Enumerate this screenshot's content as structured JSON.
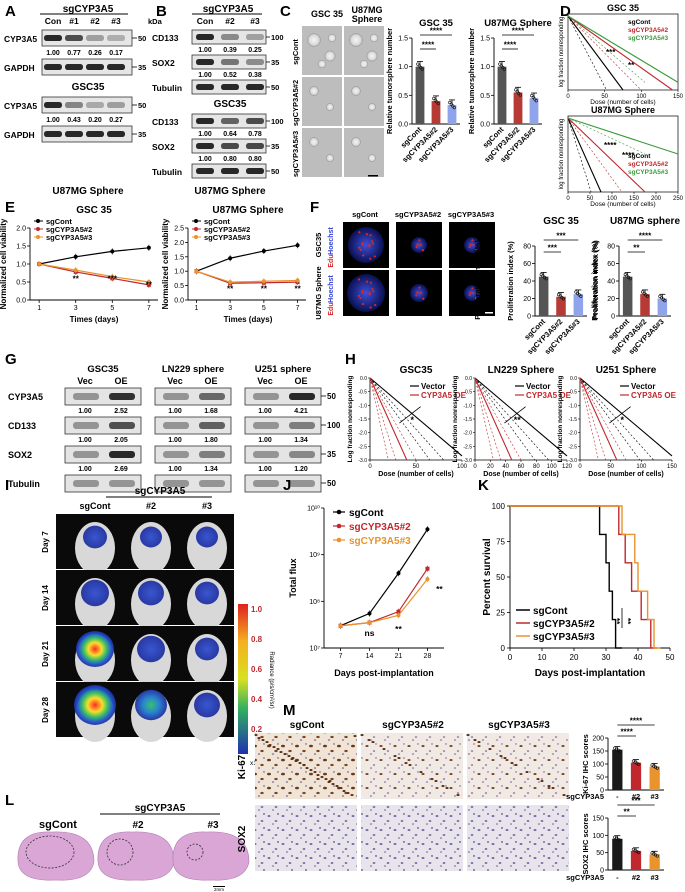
{
  "panel_labels": [
    "A",
    "B",
    "C",
    "D",
    "E",
    "F",
    "G",
    "H",
    "I",
    "J",
    "K",
    "L",
    "M"
  ],
  "colors": {
    "sgcont": "#000000",
    "sg2": "#c0282d",
    "sg3": "#e8932b",
    "sg3_green": "#3b9a3b",
    "sphere_blue": "#2130c4",
    "edu_red": "#d42a2a",
    "vector": "#000000",
    "oe": "#c0282d",
    "bar_cont": "#555555",
    "bar_sg2": "#b73b35",
    "bar_sg3": "#8fa4ea"
  },
  "panel_A": {
    "group": "sgCYP3A5",
    "lanes": [
      "Con",
      "#1",
      "#2",
      "#3"
    ],
    "kda": "kDa",
    "gsc35": {
      "cell": "GSC35",
      "rows": [
        {
          "label": "CYP3A5",
          "marker": "50",
          "values": [
            "1.00",
            "0.77",
            "0.26",
            "0.17"
          ]
        },
        {
          "label": "GAPDH",
          "marker": "35",
          "values": []
        }
      ]
    },
    "u87": {
      "cell": "U87MG Sphere",
      "rows": [
        {
          "label": "CYP3A5",
          "marker": "50",
          "values": [
            "1.00",
            "0.43",
            "0.20",
            "0.27"
          ]
        },
        {
          "label": "GAPDH",
          "marker": "35",
          "values": []
        }
      ]
    }
  },
  "panel_B": {
    "group": "sgCYP3A5",
    "lanes": [
      "Con",
      "#2",
      "#3"
    ],
    "gsc35": {
      "cell": "GSC35",
      "rows": [
        {
          "label": "CD133",
          "marker": "100",
          "values": [
            "1.00",
            "0.39",
            "0.25"
          ]
        },
        {
          "label": "SOX2",
          "marker": "35",
          "values": [
            "1.00",
            "0.52",
            "0.38"
          ]
        },
        {
          "label": "Tubulin",
          "marker": "50",
          "values": []
        }
      ]
    },
    "u87": {
      "cell": "U87MG Sphere",
      "rows": [
        {
          "label": "CD133",
          "marker": "100",
          "values": [
            "1.00",
            "0.64",
            "0.78"
          ]
        },
        {
          "label": "SOX2",
          "marker": "35",
          "values": [
            "1.00",
            "0.80",
            "0.80"
          ]
        },
        {
          "label": "Tubulin",
          "marker": "50",
          "values": []
        }
      ]
    }
  },
  "panel_C": {
    "col_titles": [
      "GSC 35",
      "U87MG Sphere"
    ],
    "row_labels": [
      "sgCont",
      "sgCYP3A5#2",
      "sgCYP3A5#3"
    ],
    "chart_gsc": {
      "title": "GSC 35",
      "ylabel": "Relative tumorsphere number",
      "ylim": [
        0,
        1.5
      ],
      "yticks": [
        "0.0",
        "0.5",
        "1.0",
        "1.5"
      ],
      "categories": [
        "sgCont",
        "sgCYP3A5#2",
        "sgCYP3A5#3"
      ],
      "values": [
        1.0,
        0.4,
        0.33
      ],
      "sig": [
        "****",
        "****"
      ]
    },
    "chart_u87": {
      "title": "U87MG Sphere",
      "ylabel": "Relative tumorsphere number",
      "ylim": [
        0,
        1.5
      ],
      "yticks": [
        "0.0",
        "0.5",
        "1.0",
        "1.5"
      ],
      "categories": [
        "sgCont",
        "sgCYP3A5#2",
        "sgCYP3A5#3"
      ],
      "values": [
        1.0,
        0.55,
        0.45
      ],
      "sig": [
        "****",
        "****"
      ]
    }
  },
  "panel_D": {
    "plots": [
      {
        "title": "GSC 35",
        "ylabel": "log fraction nonresponding",
        "xlabel": "Dose (number of cells)",
        "xticks": [
          "0",
          "50",
          "100",
          "150"
        ],
        "legend": [
          "sgCont",
          "sgCYP3A5#2",
          "sgCYP3A5#3"
        ],
        "sig": [
          "***",
          "**"
        ]
      },
      {
        "title": "U87MG Sphere",
        "ylabel": "log fraction nonresponding",
        "xlabel": "Dose (number of cells)",
        "xticks": [
          "0",
          "50",
          "100",
          "150",
          "200",
          "250"
        ],
        "legend": [
          "sgCont",
          "sgCYP3A5#2",
          "sgCYP3A5#3"
        ],
        "sig": [
          "****",
          "****"
        ]
      }
    ]
  },
  "panel_E": {
    "ylabel": "Normalized cell viability",
    "xlabel": "Times (days)",
    "chart_gsc": {
      "title": "GSC 35",
      "x": [
        1,
        3,
        5,
        7
      ],
      "ylim": [
        0,
        2.0
      ],
      "yticks": [
        "0.0",
        "0.5",
        "1.0",
        "1.5",
        "2.0"
      ],
      "series": [
        {
          "name": "sgCont",
          "values": [
            1.0,
            1.2,
            1.35,
            1.45
          ]
        },
        {
          "name": "sgCYP3A5#2",
          "values": [
            1.0,
            0.78,
            0.6,
            0.42
          ]
        },
        {
          "name": "sgCYP3A5#3",
          "values": [
            1.0,
            0.83,
            0.65,
            0.5
          ]
        }
      ],
      "sig": [
        "**",
        "***",
        "**"
      ]
    },
    "chart_u87": {
      "title": "U87MG Sphere",
      "x": [
        1,
        3,
        5,
        7
      ],
      "ylim": [
        0,
        2.5
      ],
      "yticks": [
        "0.0",
        "0.5",
        "1.0",
        "1.5",
        "2.0",
        "2.5"
      ],
      "series": [
        {
          "name": "sgCont",
          "values": [
            1.0,
            1.45,
            1.7,
            1.9
          ]
        },
        {
          "name": "sgCYP3A5#2",
          "values": [
            1.0,
            0.58,
            0.6,
            0.62
          ]
        },
        {
          "name": "sgCYP3A5#3",
          "values": [
            1.0,
            0.62,
            0.65,
            0.68
          ]
        }
      ],
      "sig": [
        "**",
        "**",
        "**"
      ]
    }
  },
  "panel_F": {
    "col_titles": [
      "sgCont",
      "sgCYP3A5#2",
      "sgCYP3A5#3"
    ],
    "row_cells": [
      "GSC35",
      "U87MG Sphere"
    ],
    "stain_hoechst": "Hoechst",
    "stain_edu": "Edu",
    "chart_gsc": {
      "title": "GSC 35",
      "ylabel": "Proliferation index (%)",
      "ylim": [
        0,
        80
      ],
      "yticks": [
        "0",
        "20",
        "40",
        "60",
        "80"
      ],
      "categories": [
        "sgCont",
        "sgCYP3A5#2",
        "sgCYP3A5#3"
      ],
      "values": [
        45,
        22,
        25
      ],
      "sig": [
        "***",
        "***"
      ]
    },
    "chart_u87": {
      "title": "U87MG sphere",
      "ylabel": "Proliferation index (%)",
      "ylim": [
        0,
        80
      ],
      "yticks": [
        "0",
        "20",
        "40",
        "60",
        "80"
      ],
      "categories": [
        "sgCont",
        "sgCYP3A5#2",
        "sgCYP3A5#3"
      ],
      "values": [
        45,
        25,
        20
      ],
      "sig": [
        "****",
        "**"
      ]
    }
  },
  "panel_G": {
    "cells": [
      "GSC35",
      "LN229 sphere",
      "U251 sphere"
    ],
    "lanes": [
      "Vec",
      "OE"
    ],
    "rows": [
      {
        "label": "CYP3A5",
        "marker": "50",
        "values": [
          [
            "1.00",
            "2.52"
          ],
          [
            "1.00",
            "1.68"
          ],
          [
            "1.00",
            "4.21"
          ]
        ]
      },
      {
        "label": "CD133",
        "marker": "100",
        "values": [
          [
            "1.00",
            "2.05"
          ],
          [
            "1.00",
            "1.80"
          ],
          [
            "1.00",
            "1.34"
          ]
        ]
      },
      {
        "label": "SOX2",
        "marker": "35",
        "values": [
          [
            "1.00",
            "2.69"
          ],
          [
            "1.00",
            "1.34"
          ],
          [
            "1.00",
            "1.20"
          ]
        ]
      },
      {
        "label": "Tubulin",
        "marker": "50",
        "values": []
      }
    ]
  },
  "panel_H": {
    "ylabel": "Log fraction nonresponding",
    "xlabel": "Dose (number of cells)",
    "yticks": [
      "0.0",
      "-0.5",
      "-1.0",
      "-1.5",
      "-2.0",
      "-2.5",
      "-3.0"
    ],
    "legend": [
      "Vector",
      "CYP3A5 OE"
    ],
    "plots": [
      {
        "title": "GSC35",
        "xticks": [
          "0",
          "50",
          "100"
        ],
        "sig": "*"
      },
      {
        "title": "LN229 Sphere",
        "xticks": [
          "0",
          "20",
          "40",
          "60",
          "80",
          "100",
          "120"
        ],
        "sig": "**"
      },
      {
        "title": "U251 Sphere",
        "xticks": [
          "0",
          "50",
          "100",
          "150"
        ],
        "sig": "*"
      }
    ]
  },
  "panel_I": {
    "group": "sgCYP3A5",
    "col_titles": [
      "sgCont",
      "#2",
      "#3"
    ],
    "days": [
      "Day 7",
      "Day 14",
      "Day 21",
      "Day 28"
    ],
    "colorbar": {
      "ticks": [
        "1.0",
        "0.8",
        "0.6",
        "0.4",
        "0.2"
      ],
      "label": "Radiance (p/s/cm²/sr)",
      "unit": "x10⁵"
    }
  },
  "panel_J": {
    "ylabel": "Total flux",
    "xlabel": "Days post-implantation",
    "yticks": [
      "10⁷",
      "10⁸",
      "10⁹",
      "10¹⁰"
    ],
    "chart": {
      "type": "line",
      "x": [
        7,
        14,
        21,
        28
      ],
      "log_y": true,
      "ylim": [
        10000000.0,
        10000000000.0
      ],
      "series": [
        {
          "name": "sgCont",
          "values": [
            30000000.0,
            55000000.0,
            400000000.0,
            3500000000.0
          ]
        },
        {
          "name": "sgCYP3A5#2",
          "values": [
            30000000.0,
            35000000.0,
            60000000.0,
            500000000.0
          ]
        },
        {
          "name": "sgCYP3A5#3",
          "values": [
            30000000.0,
            35000000.0,
            50000000.0,
            300000000.0
          ]
        }
      ],
      "sig": [
        "ns",
        "**",
        "**"
      ]
    }
  },
  "panel_K": {
    "ylabel": "Percent survival",
    "xlabel": "Days post-implantation",
    "yticks": [
      "0",
      "25",
      "50",
      "75",
      "100"
    ],
    "xticks": [
      "0",
      "10",
      "20",
      "30",
      "40",
      "50"
    ],
    "legend": [
      "sgCont",
      "sgCYP3A5#2",
      "sgCYP3A5#3"
    ],
    "sig": [
      "**",
      "**"
    ],
    "chart": {
      "type": "line",
      "series": [
        {
          "name": "sgCont",
          "steps": [
            [
              0,
              100
            ],
            [
              28,
              100
            ],
            [
              28,
              80
            ],
            [
              30,
              80
            ],
            [
              30,
              60
            ],
            [
              31,
              60
            ],
            [
              31,
              40
            ],
            [
              32,
              40
            ],
            [
              32,
              20
            ],
            [
              33,
              20
            ],
            [
              33,
              0
            ],
            [
              35,
              0
            ]
          ]
        },
        {
          "name": "sgCYP3A5#2",
          "steps": [
            [
              0,
              100
            ],
            [
              34,
              100
            ],
            [
              34,
              80
            ],
            [
              36,
              80
            ],
            [
              36,
              60
            ],
            [
              38,
              60
            ],
            [
              38,
              40
            ],
            [
              41,
              40
            ],
            [
              41,
              20
            ],
            [
              44,
              20
            ],
            [
              44,
              0
            ],
            [
              46,
              0
            ]
          ]
        },
        {
          "name": "sgCYP3A5#3",
          "steps": [
            [
              0,
              100
            ],
            [
              35,
              100
            ],
            [
              35,
              80
            ],
            [
              39,
              80
            ],
            [
              39,
              60
            ],
            [
              40,
              60
            ],
            [
              40,
              40
            ],
            [
              43,
              40
            ],
            [
              43,
              20
            ],
            [
              45,
              20
            ],
            [
              45,
              0
            ],
            [
              47,
              0
            ]
          ]
        }
      ]
    }
  },
  "panel_L": {
    "group": "sgCYP3A5",
    "col_titles": [
      "sgCont",
      "#2",
      "#3"
    ],
    "scale": "2mm"
  },
  "panel_M": {
    "col_titles": [
      "sgCont",
      "sgCYP3A5#2",
      "sgCYP3A5#3"
    ],
    "row_labels": [
      "Ki-67",
      "SOX2"
    ],
    "chart_ki67": {
      "ylabel": "Ki-67 IHC scores",
      "ylim": [
        0,
        200
      ],
      "yticks": [
        "0",
        "50",
        "100",
        "150",
        "200"
      ],
      "categories": [
        "-",
        "#2",
        "#3"
      ],
      "values": [
        155,
        105,
        90
      ],
      "sig": [
        "****",
        "****"
      ],
      "group": "sgCYP3A5"
    },
    "chart_sox2": {
      "ylabel": "SOX2 IHC scores",
      "ylim": [
        0,
        150
      ],
      "yticks": [
        "0",
        "50",
        "100",
        "150"
      ],
      "categories": [
        "-",
        "#2",
        "#3"
      ],
      "values": [
        90,
        55,
        45
      ],
      "sig": [
        "***",
        "**"
      ],
      "group": "sgCYP3A5"
    }
  }
}
